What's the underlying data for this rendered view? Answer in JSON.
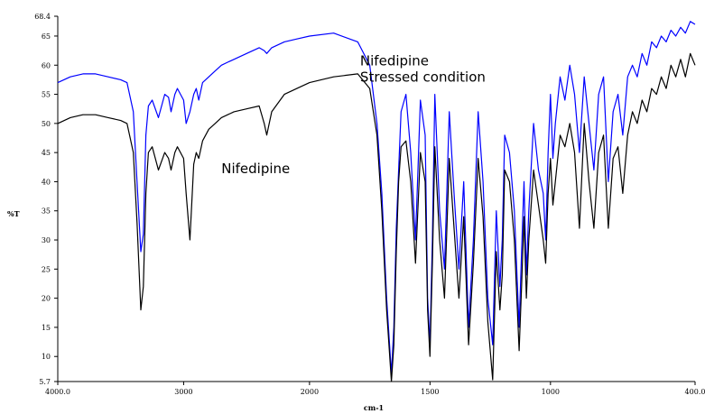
{
  "chart_data": {
    "type": "line",
    "xlabel": "cm-1",
    "ylabel": "%T",
    "xlim": [
      4000.0,
      400.0
    ],
    "ylim": [
      5.7,
      68.4
    ],
    "x_tick_labels": [
      "4000.0",
      "3000",
      "2000",
      "1500",
      "1000",
      "400.0"
    ],
    "y_tick_labels": [
      "5.7",
      "10",
      "15",
      "20",
      "25",
      "30",
      "35",
      "40",
      "45",
      "50",
      "55",
      "60",
      "65",
      "68.4"
    ],
    "grid": false,
    "legend": "none",
    "annotations": [
      {
        "lines": [
          "Nifedipine",
          "Stressed condition"
        ],
        "x": 1790,
        "y": 60
      },
      {
        "lines": [
          "Nifedipine"
        ],
        "x": 2700,
        "y": 41.5
      }
    ],
    "series": [
      {
        "color": "#0000ff",
        "x": [
          4000,
          3900,
          3800,
          3700,
          3600,
          3500,
          3450,
          3400,
          3370,
          3340,
          3320,
          3300,
          3280,
          3250,
          3200,
          3150,
          3120,
          3100,
          3070,
          3050,
          3000,
          2980,
          2950,
          2920,
          2900,
          2880,
          2850,
          2800,
          2750,
          2700,
          2650,
          2600,
          2500,
          2400,
          2360,
          2340,
          2300,
          2200,
          2100,
          2000,
          1900,
          1800,
          1750,
          1720,
          1700,
          1680,
          1660,
          1650,
          1640,
          1630,
          1620,
          1600,
          1580,
          1560,
          1540,
          1520,
          1510,
          1500,
          1490,
          1480,
          1460,
          1440,
          1420,
          1400,
          1380,
          1360,
          1340,
          1320,
          1300,
          1280,
          1260,
          1240,
          1225,
          1210,
          1200,
          1190,
          1170,
          1150,
          1130,
          1120,
          1110,
          1100,
          1090,
          1070,
          1050,
          1030,
          1020,
          1010,
          1000,
          990,
          980,
          960,
          940,
          920,
          900,
          880,
          860,
          840,
          820,
          800,
          780,
          760,
          740,
          720,
          700,
          680,
          660,
          640,
          620,
          600,
          580,
          560,
          540,
          520,
          500,
          480,
          460,
          440,
          420,
          400
        ],
        "y": [
          57,
          58,
          58.5,
          58.5,
          58,
          57.5,
          57,
          52,
          40,
          28,
          31,
          48,
          53,
          54,
          51,
          55,
          54.5,
          52,
          55,
          56,
          54,
          50,
          52,
          55,
          56,
          54,
          57,
          58,
          59,
          60,
          60.5,
          61,
          62,
          63,
          62.5,
          62,
          63,
          64,
          64.5,
          65,
          65.5,
          64,
          60,
          50,
          38,
          20,
          7,
          15,
          32,
          42,
          52,
          55,
          45,
          30,
          54,
          48,
          20,
          12,
          30,
          55,
          35,
          25,
          52,
          38,
          25,
          40,
          15,
          30,
          52,
          40,
          20,
          12,
          35,
          22,
          30,
          48,
          45,
          35,
          15,
          28,
          40,
          24,
          35,
          50,
          42,
          38,
          30,
          45,
          55,
          44,
          50,
          58,
          54,
          60,
          55,
          45,
          58,
          50,
          42,
          55,
          58,
          40,
          52,
          55,
          48,
          58,
          60,
          58,
          62,
          60,
          64,
          63,
          65,
          64,
          66,
          65,
          66.5,
          65.5,
          67.5,
          67
        ]
      },
      {
        "color": "#000000",
        "x": [
          4000,
          3900,
          3800,
          3700,
          3600,
          3500,
          3450,
          3400,
          3370,
          3340,
          3320,
          3300,
          3280,
          3250,
          3200,
          3150,
          3120,
          3100,
          3070,
          3050,
          3000,
          2980,
          2950,
          2920,
          2900,
          2880,
          2850,
          2800,
          2750,
          2700,
          2650,
          2600,
          2500,
          2400,
          2360,
          2340,
          2300,
          2200,
          2100,
          2000,
          1900,
          1800,
          1750,
          1720,
          1700,
          1680,
          1660,
          1650,
          1640,
          1630,
          1620,
          1600,
          1580,
          1560,
          1540,
          1520,
          1510,
          1500,
          1490,
          1480,
          1460,
          1440,
          1420,
          1400,
          1380,
          1360,
          1340,
          1320,
          1300,
          1280,
          1260,
          1240,
          1225,
          1210,
          1200,
          1190,
          1170,
          1150,
          1130,
          1120,
          1110,
          1100,
          1090,
          1070,
          1050,
          1030,
          1020,
          1010,
          1000,
          990,
          980,
          960,
          940,
          920,
          900,
          880,
          860,
          840,
          820,
          800,
          780,
          760,
          740,
          720,
          700,
          680,
          660,
          640,
          620,
          600,
          580,
          560,
          540,
          520,
          500,
          480,
          460,
          440,
          420,
          400
        ],
        "y": [
          50,
          51,
          51.5,
          51.5,
          51,
          50.5,
          50,
          45,
          33,
          18,
          22,
          38,
          45,
          46,
          42,
          45,
          44,
          42,
          45,
          46,
          44,
          38,
          30,
          43,
          45,
          44,
          47,
          49,
          50,
          51,
          51.5,
          52,
          52.5,
          53,
          50,
          48,
          52,
          55,
          56,
          57,
          58,
          58.5,
          56,
          48,
          35,
          18,
          5.7,
          12,
          28,
          40,
          46,
          47,
          40,
          26,
          45,
          40,
          18,
          10,
          26,
          46,
          30,
          20,
          44,
          32,
          20,
          34,
          12,
          26,
          44,
          34,
          16,
          6,
          28,
          18,
          24,
          42,
          40,
          30,
          11,
          22,
          34,
          20,
          30,
          42,
          36,
          30,
          26,
          38,
          44,
          36,
          40,
          48,
          46,
          50,
          45,
          32,
          50,
          40,
          32,
          45,
          48,
          32,
          44,
          46,
          38,
          48,
          52,
          50,
          54,
          52,
          56,
          55,
          58,
          56,
          60,
          58,
          61,
          58,
          62,
          60
        ]
      }
    ]
  }
}
